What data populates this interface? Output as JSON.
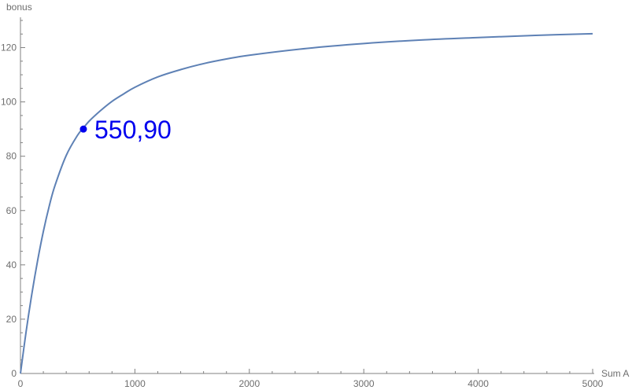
{
  "chart_data": {
    "type": "line",
    "title": "",
    "xlabel": "Sum A",
    "ylabel": "bonus",
    "xlim": [
      0,
      5000
    ],
    "ylim": [
      0,
      130
    ],
    "x_ticks": [
      0,
      1000,
      2000,
      3000,
      4000,
      5000
    ],
    "x_tick_labels": [
      "0",
      "1000",
      "2000",
      "3000",
      "4000",
      "5000"
    ],
    "y_ticks": [
      0,
      20,
      40,
      60,
      80,
      100,
      120
    ],
    "y_tick_labels": [
      "0",
      "20",
      "40",
      "60",
      "80",
      "100",
      "120"
    ],
    "grid": false,
    "series": [
      {
        "color": "#5e81b5",
        "x": [
          0,
          50,
          100,
          150,
          200,
          250,
          300,
          400,
          500,
          550,
          600,
          700,
          800,
          900,
          1000,
          1200,
          1400,
          1600,
          1800,
          2000,
          2500,
          3000,
          3500,
          4000,
          4500,
          5000
        ],
        "y": [
          0,
          15.6,
          29.4,
          41.6,
          52.3,
          61.4,
          69.0,
          80.3,
          87.8,
          90.4,
          92.9,
          96.8,
          100.2,
          102.9,
          105.4,
          109.2,
          111.9,
          114.1,
          115.8,
          117.2,
          119.7,
          121.5,
          122.8,
          123.7,
          124.5,
          125.1
        ]
      }
    ],
    "annotations": [
      {
        "x": 550,
        "y": 90,
        "text": "550,90",
        "color": "#0000ee"
      }
    ]
  }
}
